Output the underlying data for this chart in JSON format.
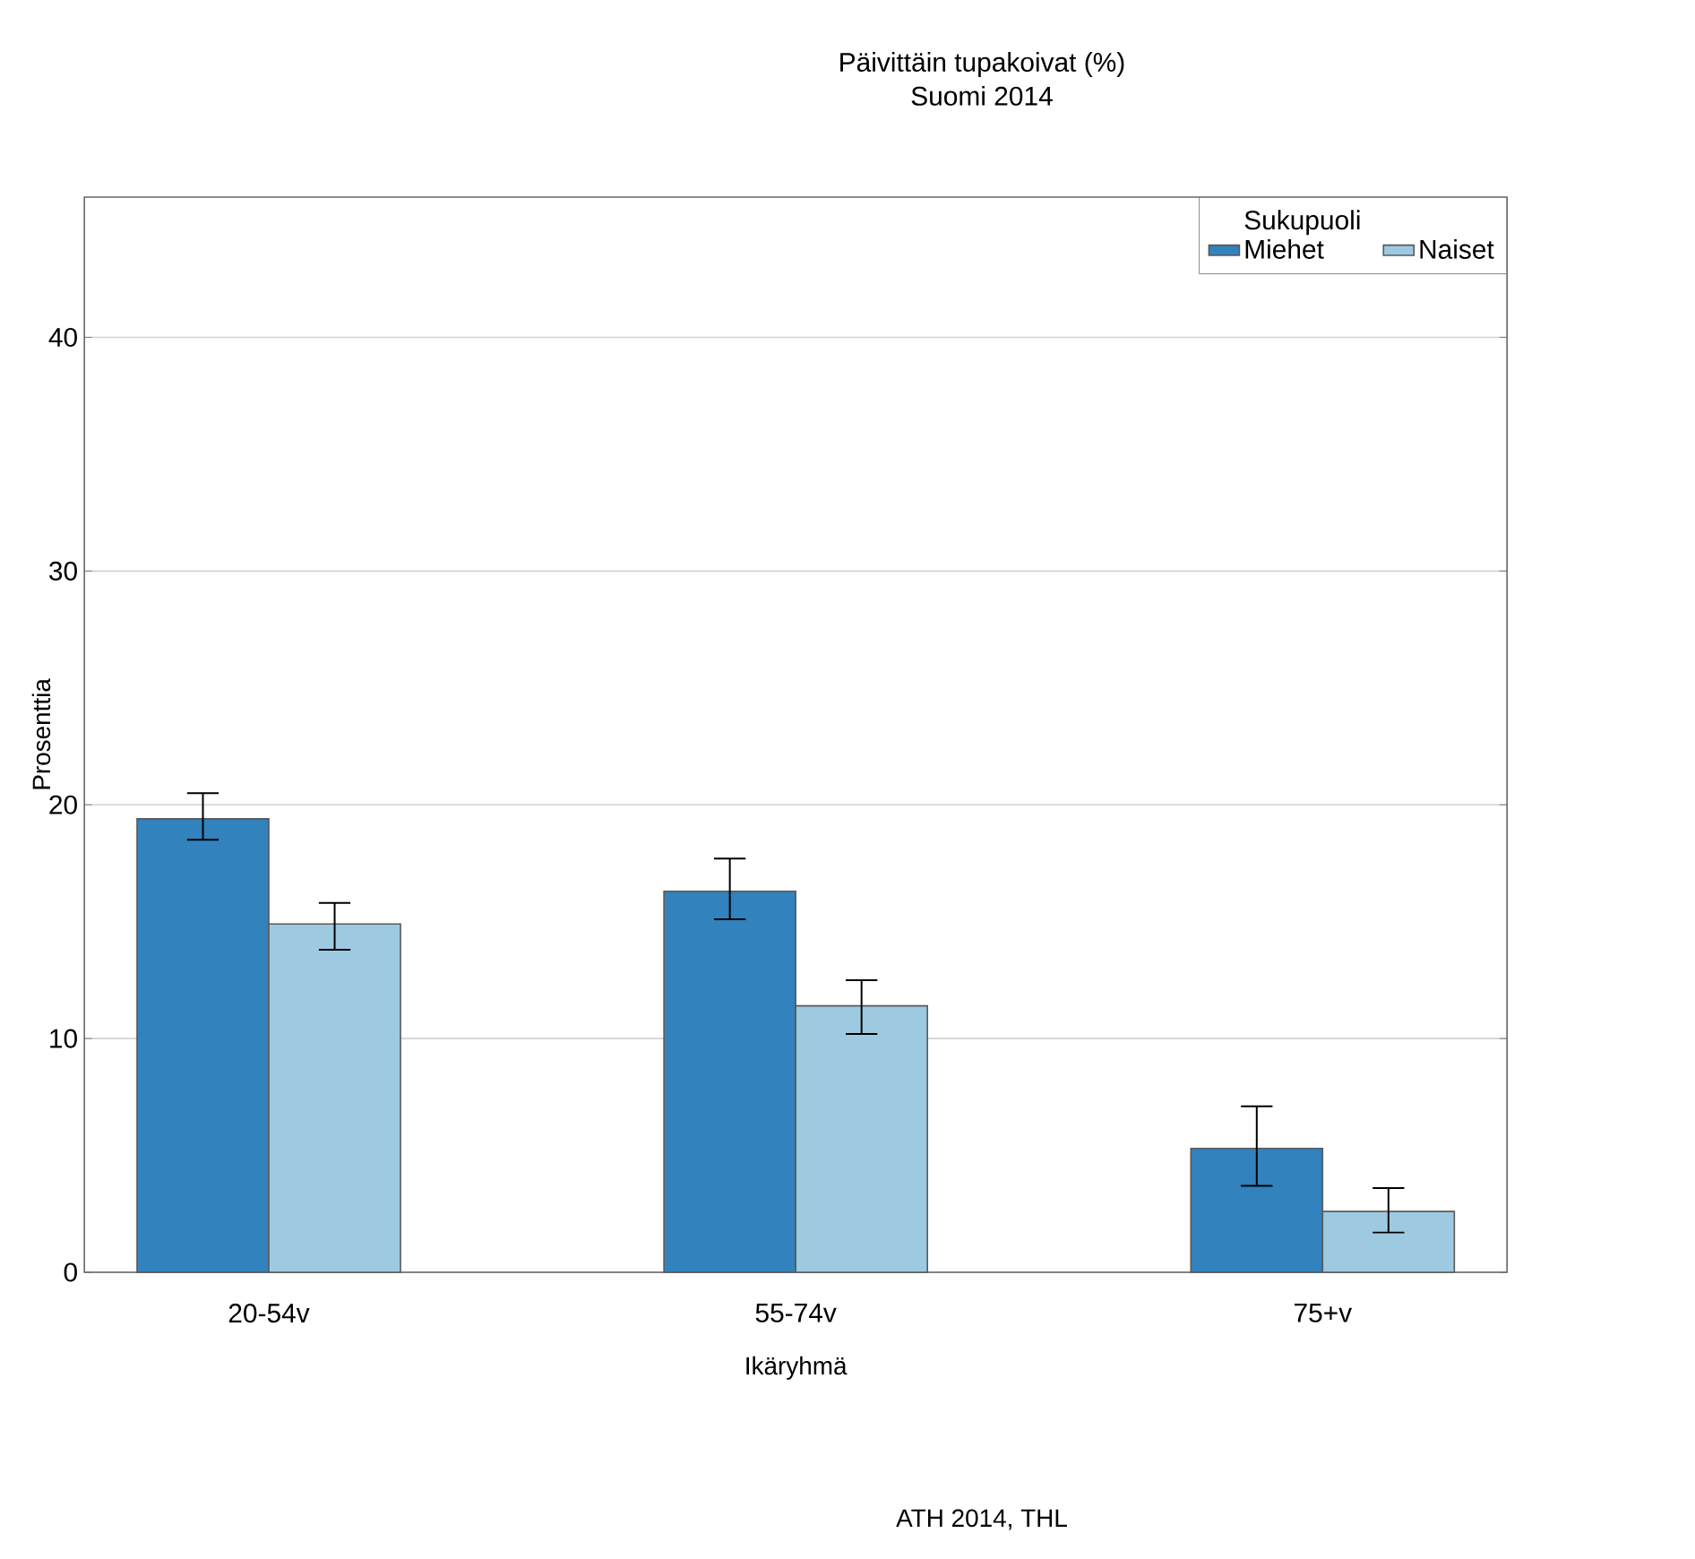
{
  "chart_data": {
    "type": "bar",
    "title": "Päivittäin tupakoivat (%)",
    "subtitle": "Suomi 2014",
    "xlabel": "Ikäryhmä",
    "ylabel": "Prosenttia",
    "legend_title": "Sukupuoli",
    "annotations": [
      "ATH 2014, THL"
    ],
    "categories": [
      "20-54v",
      "55-74v",
      "75+v"
    ],
    "series": [
      {
        "name": "Miehet",
        "color": "#3182bd",
        "values": [
          19.4,
          16.3,
          5.3
        ],
        "errors": [
          [
            18.5,
            20.5
          ],
          [
            15.1,
            17.7
          ],
          [
            3.7,
            7.1
          ]
        ]
      },
      {
        "name": "Naiset",
        "color": "#9ecae1",
        "values": [
          14.9,
          11.4,
          2.6
        ],
        "errors": [
          [
            13.8,
            15.8
          ],
          [
            10.2,
            12.5
          ],
          [
            1.7,
            3.6
          ]
        ]
      }
    ],
    "ylim": [
      0,
      46
    ],
    "yticks": [
      0,
      10,
      20,
      30,
      40
    ],
    "grid": "y",
    "legend": "top right"
  }
}
